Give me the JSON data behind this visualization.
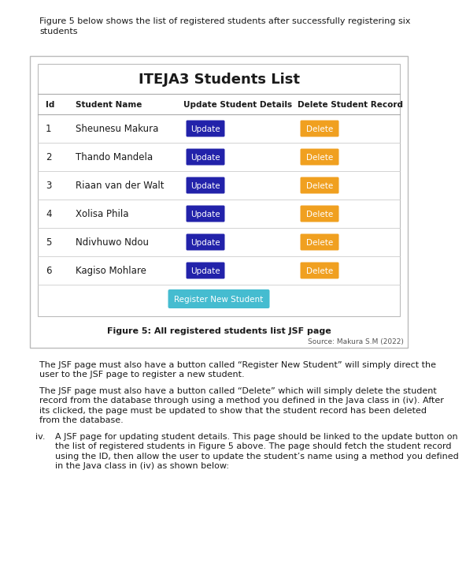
{
  "title_line1": "Figure 5 below shows the list of registered students after successfully registering six",
  "title_line2": "students",
  "table_title": "ITEJA3 Students List",
  "col_headers": [
    "Id",
    "Student Name",
    "Update Student Details",
    "Delete Student Record"
  ],
  "students": [
    {
      "id": "1",
      "name": "Sheunesu Makura"
    },
    {
      "id": "2",
      "name": "Thando Mandela"
    },
    {
      "id": "3",
      "name": "Riaan van der Walt"
    },
    {
      "id": "4",
      "name": "Xolisa Phila"
    },
    {
      "id": "5",
      "name": "Ndivhuwo Ndou"
    },
    {
      "id": "6",
      "name": "Kagiso Mohlare"
    }
  ],
  "update_btn_color": "#2222aa",
  "delete_btn_color": "#f0a020",
  "register_btn_color": "#45bcd0",
  "register_btn_text": "Register New Student",
  "figure_caption": "Figure 5: All registered students list JSF page",
  "source_text": "Source: Makura S.M (2022)",
  "para1_lines": [
    "The JSF page must also have a button called “Register New Student” will simply direct the",
    "user to the JSF page to register a new student."
  ],
  "para2_lines": [
    "The JSF page must also have a button called “Delete” which will simply delete the student",
    "record from the database through using a method you defined in the Java class in (iv). After",
    "its clicked, the page must be updated to show that the student record has been deleted",
    "from the database."
  ],
  "para3_label": "iv.",
  "para3_lines": [
    "A JSF page for updating student details. This page should be linked to the update button on",
    "the list of registered students in Figure 5 above. The page should fetch the student record",
    "using the ID, then allow the user to update the student’s name using a method you defined",
    "in the Java class in (iv) as shown below:"
  ],
  "bg_color": "#ffffff",
  "box_border_color": "#bbbbbb",
  "inner_border_color": "#bbbbbb",
  "header_line_color": "#aaaaaa",
  "row_line_color": "#cccccc",
  "text_color": "#1a1a1a",
  "body_text_color": "#1a1a1a"
}
